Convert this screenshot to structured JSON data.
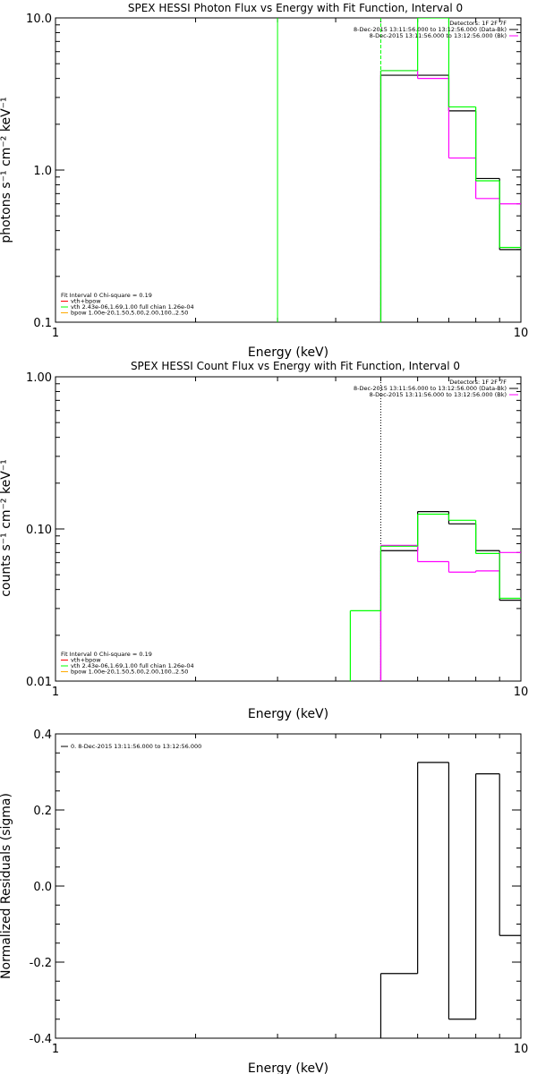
{
  "colors": {
    "data": "#000000",
    "background": "#ff00ff",
    "model_total": "#00ff00",
    "vth": "#00ff00",
    "vth_dashed": "#00ff00",
    "bpow": "#ffaa00",
    "legend_fit": "#ff0000"
  },
  "chart_data": [
    {
      "type": "line",
      "title": "SPEX HESSI Photon Flux vs Energy with Fit Function, Interval 0",
      "xlabel": "Energy (keV)",
      "ylabel": "photons s⁻¹ cm⁻² keV⁻¹",
      "xscale": "log",
      "yscale": "log",
      "xlim": [
        1,
        10
      ],
      "ylim": [
        0.1,
        10
      ],
      "xticks": [
        {
          "v": 1,
          "label": "1"
        },
        {
          "v": 10,
          "label": "10"
        }
      ],
      "yticks": [
        {
          "v": 0.1,
          "label": "0.1"
        },
        {
          "v": 1,
          "label": "1.0"
        },
        {
          "v": 10,
          "label": "10.0"
        }
      ],
      "legend_right": [
        {
          "text": "Detectors: 1F 2F 7F",
          "color": ""
        },
        {
          "text": "8-Dec-2015 13:11:56.000 to 13:12:56.000 (Data-Bk)",
          "color": "#000000"
        },
        {
          "text": "8-Dec-2015 13:11:56.000 to 13:12:56.000 (Bk)",
          "color": "#ff00ff"
        }
      ],
      "legend_left": [
        {
          "text": "Fit Interval 0   Chi-square = 0.19",
          "color": ""
        },
        {
          "text": "vth+bpow",
          "color": "#ff0000"
        },
        {
          "text": "vth 2.43e-06,1.69,1.00  full chian 1.26e-04",
          "color": "#00ff00"
        },
        {
          "text": "bpow 1.00e-20,1.50,5.00,2.00,100.,2.50",
          "color": "#ffaa00"
        }
      ],
      "series": [
        {
          "name": "8-Dec-2015 13:11:56.000 to 13:12:56.000 (Data-Bk)",
          "color": "#000000",
          "edges": [
            5.0,
            6.0,
            7.0,
            8.0,
            9.0,
            10.0
          ],
          "values": [
            4.2,
            4.2,
            2.45,
            0.88,
            0.3
          ]
        },
        {
          "name": "8-Dec-2015 13:11:56.000 to 13:12:56.000 (Bk)",
          "color": "#ff00ff",
          "edges": [
            5.0,
            6.0,
            7.0,
            8.0,
            9.0,
            10.0
          ],
          "values": [
            4.5,
            4.0,
            1.2,
            0.65,
            0.6
          ]
        },
        {
          "color": "#00ff00",
          "edges": [
            5.0,
            6.0,
            7.0,
            8.0,
            9.0,
            10.0
          ],
          "values": [
            4.5,
            10.0,
            2.6,
            0.85,
            0.31
          ]
        }
      ],
      "vlines": [
        {
          "x": 3.0,
          "color": "#00ff00",
          "style": "solid"
        },
        {
          "x": 5.0,
          "color": "#00ff00",
          "style": "dashed"
        }
      ]
    },
    {
      "type": "line",
      "title": "SPEX HESSI Count Flux vs Energy with Fit Function, Interval 0",
      "xlabel": "Energy (keV)",
      "ylabel": "counts s⁻¹ cm⁻² keV⁻¹",
      "xscale": "log",
      "yscale": "log",
      "xlim": [
        1,
        10
      ],
      "ylim": [
        0.01,
        1
      ],
      "xticks": [
        {
          "v": 1,
          "label": "1"
        },
        {
          "v": 10,
          "label": "10"
        }
      ],
      "yticks": [
        {
          "v": 0.01,
          "label": "0.01"
        },
        {
          "v": 0.1,
          "label": "0.10"
        },
        {
          "v": 1,
          "label": "1.00"
        }
      ],
      "legend_right": [
        {
          "text": "Detectors: 1F 2F 7F",
          "color": ""
        },
        {
          "text": "8-Dec-2015 13:11:56.000 to 13:12:56.000 (Data-Bk)",
          "color": "#000000"
        },
        {
          "text": "8-Dec-2015 13:11:56.000 to 13:12:56.000 (Bk)",
          "color": "#ff00ff"
        }
      ],
      "legend_left": [
        {
          "text": "Fit Interval 0   Chi-square = 0.19",
          "color": ""
        },
        {
          "text": "vth+bpow",
          "color": "#ff0000"
        },
        {
          "text": "vth 2.43e-06,1.69,1.00  full chian 1.26e-04",
          "color": "#00ff00"
        },
        {
          "text": "bpow 1.00e-20,1.50,5.00,2.00,100.,2.50",
          "color": "#ffaa00"
        }
      ],
      "series": [
        {
          "name": "8-Dec-2015 13:11:56.000 to 13:12:56.000 (Data-Bk)",
          "color": "#000000",
          "edges": [
            5.0,
            6.0,
            7.0,
            8.0,
            9.0,
            10.0
          ],
          "values": [
            0.072,
            0.13,
            0.108,
            0.072,
            0.034
          ]
        },
        {
          "name": "8-Dec-2015 13:11:56.000 to 13:12:56.000 (Bk)",
          "color": "#ff00ff",
          "edges": [
            5.0,
            6.0,
            7.0,
            8.0,
            9.0,
            10.0
          ],
          "values": [
            0.078,
            0.061,
            0.052,
            0.053,
            0.07
          ]
        },
        {
          "color": "#00ff00",
          "edges": [
            4.3,
            5.0,
            6.0,
            7.0,
            8.0,
            9.0,
            10.0
          ],
          "values": [
            0.029,
            0.077,
            0.125,
            0.114,
            0.069,
            0.035
          ]
        }
      ],
      "vlines": [
        {
          "x": 5.0,
          "color": "#000000",
          "style": "dotted"
        }
      ]
    },
    {
      "type": "line",
      "title": "",
      "xlabel": "Energy (keV)",
      "ylabel": "Normalized Residuals (sigma)",
      "xscale": "log",
      "yscale": "linear",
      "xlim": [
        1,
        10
      ],
      "ylim": [
        -0.4,
        0.4
      ],
      "xticks": [
        {
          "v": 1,
          "label": "1"
        },
        {
          "v": 10,
          "label": "10"
        }
      ],
      "yticks": [
        {
          "v": -0.4,
          "label": "-0.4"
        },
        {
          "v": -0.2,
          "label": "-0.2"
        },
        {
          "v": 0,
          "label": "0.0"
        },
        {
          "v": 0.2,
          "label": "0.2"
        },
        {
          "v": 0.4,
          "label": "0.4"
        }
      ],
      "legend_right": [],
      "legend_left": [
        {
          "text": "0. 8-Dec-2015 13:11:56.000 to 13:12:56.000",
          "color": "#000000"
        }
      ],
      "series": [
        {
          "name": "0. 8-Dec-2015 13:11:56.000 to 13:12:56.000",
          "color": "#000000",
          "edges": [
            5.0,
            6.0,
            7.0,
            8.0,
            9.0,
            10.0
          ],
          "values": [
            -0.23,
            0.325,
            -0.35,
            0.295,
            -0.13
          ]
        }
      ],
      "vlines": []
    }
  ]
}
